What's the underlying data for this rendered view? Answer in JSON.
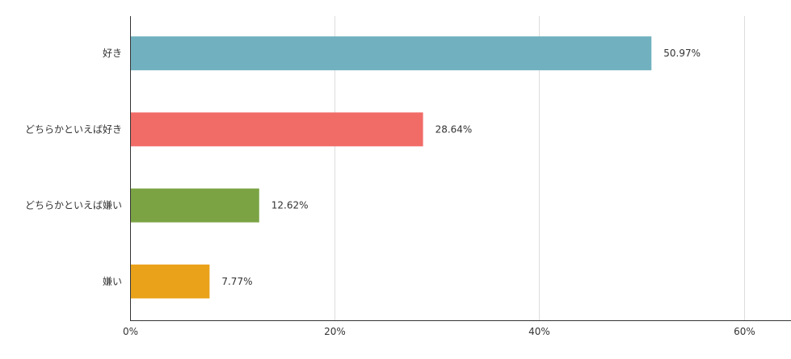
{
  "chart_data": {
    "type": "bar",
    "orientation": "horizontal",
    "categories": [
      "好き",
      "どちらかといえば好き",
      "どちらかといえば嫌い",
      "嫌い"
    ],
    "values": [
      50.97,
      28.64,
      12.62,
      7.77
    ],
    "value_labels": [
      "50.97%",
      "28.64%",
      "12.62%",
      "7.77%"
    ],
    "colors": [
      "#71b1bf",
      "#f16b67",
      "#7ba344",
      "#eaa21b"
    ],
    "xlim": [
      0,
      64
    ],
    "x_ticks": [
      0,
      20,
      40,
      60
    ],
    "x_tick_labels": [
      "0%",
      "20%",
      "40%",
      "60%"
    ],
    "grid": true,
    "legend": "none"
  }
}
